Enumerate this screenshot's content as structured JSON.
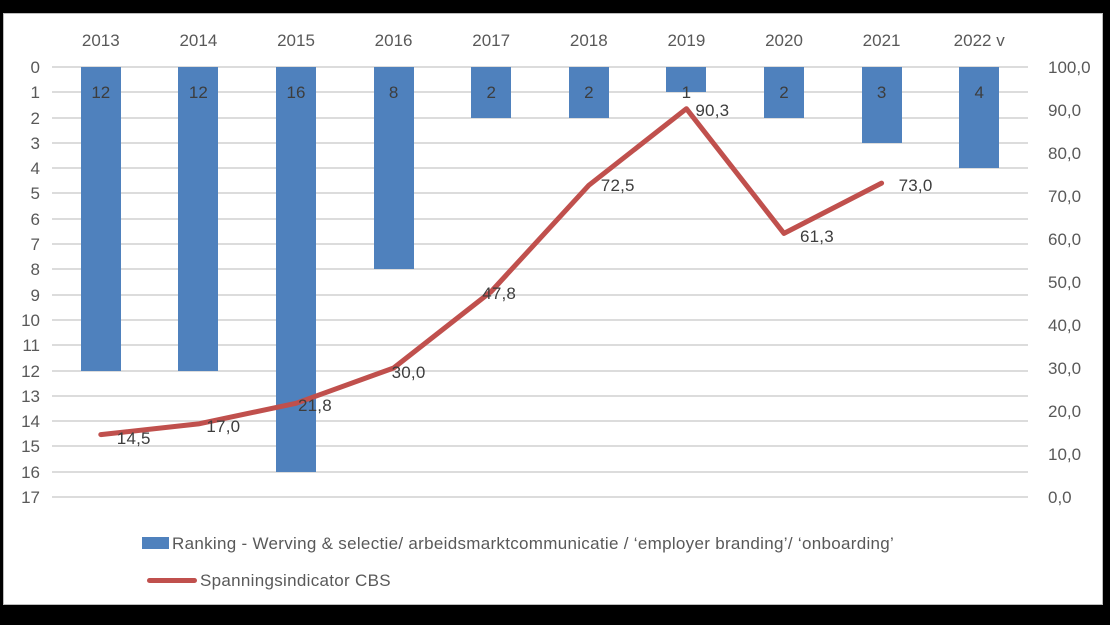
{
  "window": {
    "background": "#000000",
    "panel_background": "#ffffff",
    "panel_border": "#bdbdbd"
  },
  "chart_data": {
    "type": "combo-bar-line",
    "categories": [
      "2013",
      "2014",
      "2015",
      "2016",
      "2017",
      "2018",
      "2019",
      "2020",
      "2021",
      "2022 v"
    ],
    "series": [
      {
        "name": "Ranking - Werving & selectie/ arbeidsmarktcommunicatie / ‘employer branding’/ ‘onboarding’",
        "type": "bar",
        "axis": "left",
        "color": "#4f81bd",
        "values": [
          12,
          12,
          16,
          8,
          2,
          2,
          1,
          2,
          3,
          4
        ],
        "labels": [
          "12",
          "12",
          "16",
          "8",
          "2",
          "2",
          "1",
          "2",
          "3",
          "4"
        ]
      },
      {
        "name": "Spanningsindicator CBS",
        "type": "line",
        "axis": "right",
        "color": "#c0504d",
        "values": [
          14.5,
          17.0,
          21.8,
          30.0,
          47.8,
          72.5,
          90.3,
          61.3,
          73.0,
          null
        ],
        "labels": [
          "14,5",
          "17,0",
          "21,8",
          "30,0",
          "47,8",
          "72,5",
          "90,3",
          "61,3",
          "73,0",
          null
        ]
      }
    ],
    "left_axis": {
      "min": 0,
      "max": 17,
      "step": 1,
      "inverted": true,
      "ticks": [
        "0",
        "1",
        "2",
        "3",
        "4",
        "5",
        "6",
        "7",
        "8",
        "9",
        "10",
        "11",
        "12",
        "13",
        "14",
        "15",
        "16",
        "17"
      ]
    },
    "right_axis": {
      "min": 0,
      "max": 100,
      "step": 10,
      "ticks": [
        "100,0",
        "90,0",
        "80,0",
        "70,0",
        "60,0",
        "50,0",
        "40,0",
        "30,0",
        "20,0",
        "10,0",
        "0,0"
      ]
    },
    "grid": true,
    "gridline_color": "#dcdcdc",
    "axis_text_color": "#595959",
    "data_label_color": "#3d3d3d",
    "legend_position": "bottom-left"
  },
  "legend": {
    "bar_label": "Ranking - Werving & selectie/ arbeidsmarktcommunicatie / ‘employer branding’/ ‘onboarding’",
    "line_label": "Spanningsindicator CBS"
  }
}
